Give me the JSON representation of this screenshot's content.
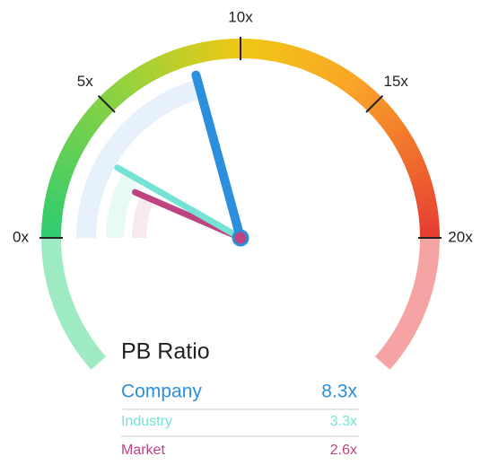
{
  "chart_data": {
    "type": "gauge",
    "title": "PB Ratio",
    "range": [
      0,
      20
    ],
    "ticks": [
      {
        "value": 0,
        "label": "0x"
      },
      {
        "value": 5,
        "label": "5x"
      },
      {
        "value": 10,
        "label": "10x"
      },
      {
        "value": 15,
        "label": "15x"
      },
      {
        "value": 20,
        "label": "20x"
      }
    ],
    "series": [
      {
        "name": "Company",
        "color": "#2b8fde",
        "values": [
          8.3
        ],
        "value_labels": [
          "8.3x"
        ]
      },
      {
        "name": "Industry",
        "color": "#74e3d5",
        "values": [
          3.3
        ],
        "value_labels": [
          "3.3x"
        ]
      },
      {
        "name": "Market",
        "color": "#bd4381",
        "values": [
          2.6
        ],
        "value_labels": [
          "2.6x"
        ]
      }
    ]
  }
}
